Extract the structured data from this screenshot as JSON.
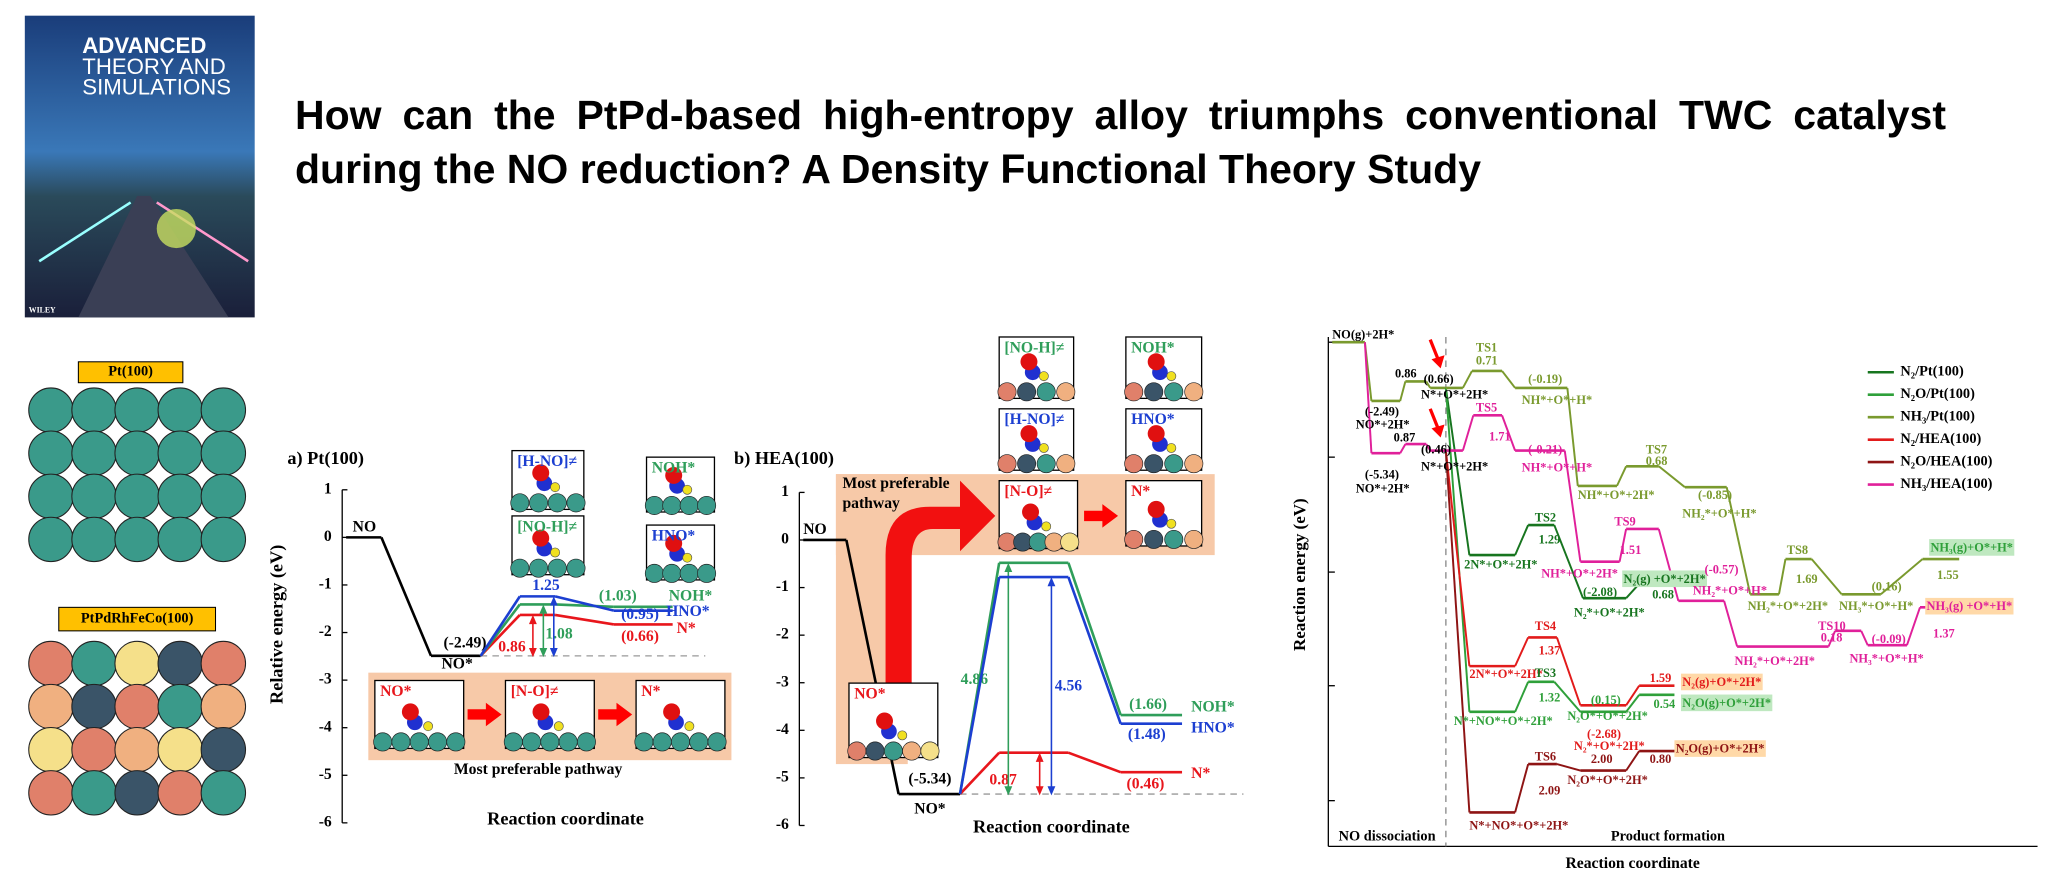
{
  "title": "How can the PtPd-based high-entropy alloy triumphs conventional TWC catalyst during the NO reduction? A Density Functional Theory Study",
  "cover": {
    "lines": [
      "ADVANCED",
      "THEORY AND",
      "SIMULATIONS"
    ],
    "publisher": "WILEY"
  },
  "surfaces": [
    "Pt(100)",
    "PtPdRhFeCo(100)"
  ],
  "panel_a": {
    "title": "a) Pt(100)",
    "ylabel": "Relative energy (eV)",
    "xlabel": "Reaction coordinate",
    "ylim": [
      -6,
      1
    ],
    "yticks": [
      1,
      0,
      -1,
      -2,
      -3,
      -4,
      -5,
      -6
    ],
    "start_labels": [
      "NO",
      "NO*",
      "(-2.49)"
    ],
    "common": {
      "color": "#000000",
      "values": [
        0,
        -2.49
      ]
    },
    "series": [
      {
        "name": "N*",
        "color": "#e8161c",
        "values": [
          -1.63,
          -1.83
        ],
        "barrier": 0.86,
        "energy": "(0.66)"
      },
      {
        "name": "NOH*",
        "color": "#2f9e5a",
        "values": [
          -1.41,
          -1.46
        ],
        "barrier": 1.08,
        "energy": "(1.03)"
      },
      {
        "name": "HNO*",
        "color": "#1c3fd1",
        "values": [
          -1.24,
          -1.54
        ],
        "barrier": 1.25,
        "energy": "(0.95)"
      }
    ],
    "insets": [
      "[H-NO]≠",
      "NOH*",
      "[NO-H]≠",
      "HNO*",
      "NO*",
      "[N-O]≠",
      "N*"
    ],
    "pathway": [
      "Most preferable pathway"
    ]
  },
  "panel_b": {
    "title": "b) HEA(100)",
    "xlabel": "Reaction coordinate",
    "ylim": [
      -6,
      1
    ],
    "yticks": [
      1,
      0,
      -1,
      -2,
      -3,
      -4,
      -5,
      -6
    ],
    "start_labels": [
      "NO",
      "NO*",
      "(-5.34)"
    ],
    "common": {
      "color": "#000000",
      "values": [
        0,
        -5.34
      ]
    },
    "series": [
      {
        "name": "N*",
        "color": "#e8161c",
        "values": [
          -4.47,
          -4.88
        ],
        "barrier": 0.87,
        "energy": "(0.46)"
      },
      {
        "name": "NOH*",
        "color": "#2f9e5a",
        "values": [
          -0.48,
          -3.68
        ],
        "barrier": 4.86,
        "energy": "(1.66)"
      },
      {
        "name": "HNO*",
        "color": "#1c3fd1",
        "values": [
          -0.78,
          -3.86
        ],
        "barrier": 4.56,
        "energy": "(1.48)"
      }
    ],
    "insets": [
      "[NO-H]≠",
      "NOH*",
      "[H-NO]≠",
      "HNO*",
      "[N-O]≠",
      "N*",
      "NO*"
    ],
    "pathway": [
      "Most preferable",
      "pathway"
    ]
  },
  "panel_c": {
    "ylabel": "Reaction energy (eV)",
    "xlabel": "Reaction coordinate",
    "regions": [
      "NO dissociation",
      "Product formation"
    ],
    "legend": [
      {
        "name": "N₂/Pt(100)",
        "color": "#17751f"
      },
      {
        "name": "N₂O/Pt(100)",
        "color": "#2fa03a"
      },
      {
        "name": "NH₃/Pt(100)",
        "color": "#7a9a2e"
      },
      {
        "name": "N₂/HEA(100)",
        "color": "#e21b1b"
      },
      {
        "name": "N₂O/HEA(100)",
        "color": "#8e1414"
      },
      {
        "name": "NH₃/HEA(100)",
        "color": "#e0209a"
      }
    ],
    "labels": [
      "NO(g)+2H*",
      "(-2.49)",
      "NO*+2H*",
      "0.86",
      "(0.66)",
      "N*+O*+2H*",
      "TS1",
      "0.71",
      "(-0.19)",
      "NH*+O*+H*",
      "(-5.34)",
      "NO*+2H*",
      "0.87",
      "(0.46)",
      "N*+O*+2H*",
      "TS5",
      "1.71",
      "(-0.21)",
      "NH*+O*+H*",
      "TS7",
      "0.68",
      "NH*+O*+2H*",
      "(-0.85)",
      "NH₂*+O*+H*",
      "TS8",
      "1.69",
      "NH₂*+O*+2H*",
      "(0.16)",
      "NH₃*+O*+H*",
      "NH₃(g)+O*+H*",
      "1.55",
      "TS2",
      "1.29",
      "2N*+O*+2H*",
      "(-2.08)",
      "N₂*+O*+2H*",
      "N₂(g) +O*+2H*",
      "0.68",
      "TS9",
      "1.51",
      "NH*+O*+2H*",
      "(-0.57)",
      "NH₂*+O*+H*",
      "NH₂*+O*+2H*",
      "TS10",
      "0.18",
      "(-0.09)",
      "NH₃*+O*+H*",
      "NH₃(g) +O*+H*",
      "1.37",
      "TS4",
      "1.37",
      "2N*+O*+2H*",
      "TS3",
      "1.32",
      "N*+NO*+O*+2H*",
      "(0.15)",
      "N₂O*+O*+2H*",
      "1.59",
      "N₂(g)+O*+2H*",
      "0.54",
      "N₂O(g)+O*+2H*",
      "(-2.68)",
      "N₂*+O*+2H*",
      "2.00",
      "N₂O*+O*+2H*",
      "0.80",
      "N₂O(g)+O*+2H*",
      "TS6",
      "2.09",
      "N*+NO*+O*+2H*"
    ]
  }
}
